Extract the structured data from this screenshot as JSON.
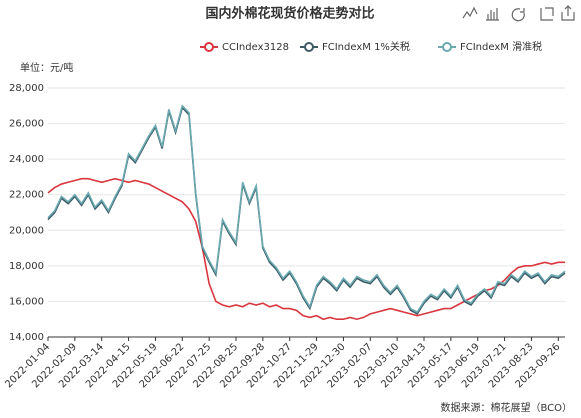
{
  "chart_data": {
    "type": "line",
    "title": "国内外棉花现货价格走势对比",
    "y_axis_label": "单位：元/吨",
    "source": "数据来源：棉花展望（BCO）",
    "categories": [
      "2022-01-04",
      null,
      null,
      null,
      "2022-02-09",
      null,
      null,
      null,
      "2022-03-14",
      null,
      null,
      null,
      "2022-04-15",
      null,
      null,
      null,
      "2022-05-19",
      null,
      null,
      null,
      "2022-06-22",
      null,
      null,
      null,
      "2022-07-25",
      null,
      null,
      null,
      "2022-08-25",
      null,
      null,
      null,
      "2022-09-28",
      null,
      null,
      null,
      "2022-10-27",
      null,
      null,
      null,
      "2022-11-29",
      null,
      null,
      null,
      "2022-12-30",
      null,
      null,
      null,
      "2023-02-07",
      null,
      null,
      null,
      "2023-03-10",
      null,
      null,
      null,
      "2023-04-13",
      null,
      null,
      null,
      "2023-05-17",
      null,
      null,
      null,
      "2023-06-19",
      null,
      null,
      null,
      "2023-07-21",
      null,
      null,
      null,
      "2023-08-23",
      null,
      null,
      null,
      "2023-09-26",
      null
    ],
    "series": [
      {
        "name": "CCIndex3128",
        "color": "#d9363e",
        "values": [
          22100,
          22400,
          22600,
          22700,
          22800,
          22900,
          22900,
          22800,
          22700,
          22800,
          22900,
          22800,
          22700,
          22800,
          22700,
          22600,
          22400,
          22200,
          22000,
          21800,
          21600,
          21200,
          20500,
          19000,
          17000,
          16000,
          15800,
          15700,
          15800,
          15700,
          15900,
          15800,
          15900,
          15700,
          15800,
          15600,
          15600,
          15500,
          15200,
          15100,
          15200,
          15000,
          15100,
          15000,
          15000,
          15100,
          15000,
          15100,
          15300,
          15400,
          15500,
          15600,
          15500,
          15400,
          15300,
          15200,
          15300,
          15400,
          15500,
          15600,
          15600,
          15800,
          16000,
          16200,
          16400,
          16600,
          16700,
          16900,
          17200,
          17600,
          17900,
          18000,
          18000,
          18100,
          18200,
          18100,
          18200,
          18200
        ]
      },
      {
        "name": "FCIndexM 1%关税",
        "color": "#3b5a66",
        "values": [
          20600,
          21000,
          21800,
          21500,
          21900,
          21400,
          22000,
          21200,
          21600,
          21000,
          21800,
          22500,
          24200,
          23800,
          24500,
          25200,
          25800,
          24600,
          26700,
          25500,
          26900,
          26500,
          22000,
          19000,
          18200,
          17500,
          20500,
          19800,
          19200,
          22600,
          21500,
          22400,
          19000,
          18200,
          17800,
          17200,
          17600,
          17000,
          16200,
          15600,
          16800,
          17300,
          17000,
          16600,
          17200,
          16800,
          17300,
          17100,
          17000,
          17400,
          16800,
          16400,
          16800,
          16200,
          15500,
          15300,
          15900,
          16300,
          16100,
          16600,
          16200,
          16800,
          16000,
          15800,
          16300,
          16600,
          16200,
          17000,
          16900,
          17400,
          17100,
          17600,
          17300,
          17500,
          17000,
          17400,
          17300,
          17600
        ]
      },
      {
        "name": "FCIndexM 滑准税",
        "color": "#6aa9b0",
        "values": [
          20700,
          21100,
          21900,
          21600,
          22000,
          21500,
          22100,
          21300,
          21700,
          21100,
          21900,
          22600,
          24300,
          23900,
          24600,
          25300,
          25900,
          24700,
          26800,
          25600,
          27000,
          26600,
          22100,
          19100,
          18300,
          17600,
          20600,
          19900,
          19300,
          22700,
          21600,
          22500,
          19100,
          18300,
          17900,
          17300,
          17700,
          17100,
          16300,
          15700,
          16900,
          17400,
          17100,
          16700,
          17300,
          16900,
          17400,
          17200,
          17100,
          17500,
          16900,
          16500,
          16900,
          16300,
          15600,
          15400,
          16000,
          16400,
          16200,
          16700,
          16300,
          16900,
          16100,
          15900,
          16400,
          16700,
          16300,
          17100,
          17000,
          17500,
          17200,
          17700,
          17400,
          17600,
          17100,
          17500,
          17400,
          17700
        ]
      }
    ],
    "ylim": [
      14000,
      28000
    ],
    "yticks": [
      {
        "value": 14000,
        "label": "14,000"
      },
      {
        "value": 16000,
        "label": "16,000"
      },
      {
        "value": 18000,
        "label": "18,000"
      },
      {
        "value": 20000,
        "label": "20,000"
      },
      {
        "value": 22000,
        "label": "22,000"
      },
      {
        "value": 24000,
        "label": "24,000"
      },
      {
        "value": 26000,
        "label": "26,000"
      },
      {
        "value": 28000,
        "label": "28,000"
      }
    ],
    "grid": true
  }
}
